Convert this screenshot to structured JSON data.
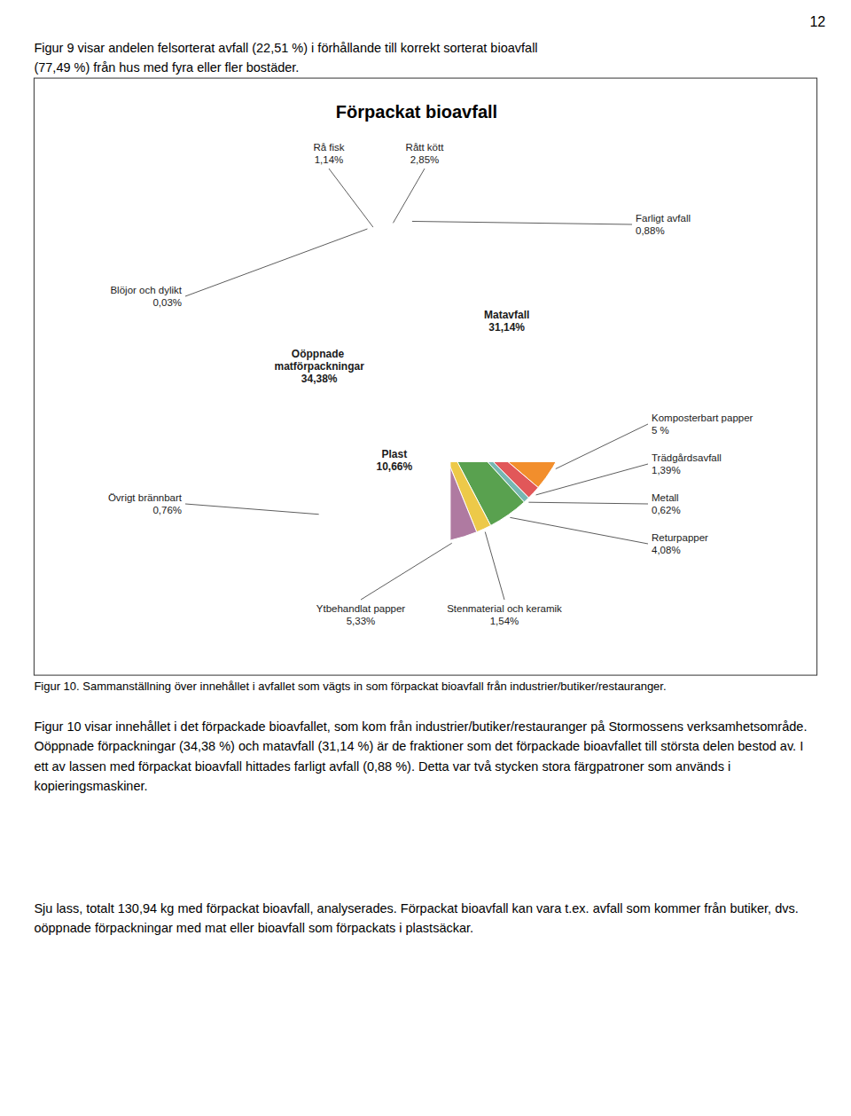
{
  "page_number": "12",
  "header_text": "Figur 9 visar andelen felsorterat avfall (22,51 %) i förhållande till korrekt sorterat bioavfall\n(77,49 %) från hus med fyra eller fler bostäder.",
  "chart_data": {
    "type": "pie",
    "title": "Förpackat bioavfall",
    "categories": [
      "Matavfall",
      "Komposterbart papper",
      "Trädgårdsavfall",
      "Metall",
      "Returpapper",
      "Stenmaterial och keramik",
      "Ytbehandlat papper",
      "Plast",
      "Övrigt brännbart",
      "Oöppnade matförpackningar",
      "Blöjor och dylikt",
      "Rå fisk",
      "Rått kött",
      "Farligt avfall"
    ],
    "values": [
      31.14,
      5.0,
      1.39,
      0.62,
      4.08,
      1.54,
      5.33,
      10.66,
      0.76,
      34.38,
      0.03,
      1.14,
      2.85,
      0.88
    ],
    "value_labels": [
      "31,14%",
      "5 %",
      "1,39%",
      "0,62%",
      "4,08%",
      "1,54%",
      "5,33%",
      "10,66%",
      "0,76%",
      "34,38%",
      "0,03%",
      "1,14%",
      "2,85%",
      "0,88%"
    ],
    "data_labels": true
  },
  "caption": "Figur 10. Sammanställning över innehållet i avfallet som vägts in som förpackat bioavfall från industrier/butiker/restauranger.",
  "body": [
    "Figur 10 visar innehållet i det förpackade bioavfallet, som kom från industrier/butiker/restauranger på Stormossens verksamhetsområde. Oöppnade förpackningar (34,38 %) och matavfall (31,14 %) är de fraktioner som det förpackade bioavfallet till största delen bestod av. I ett av lassen med förpackat bioavfall hittades farligt avfall (0,88 %). Detta var två stycken stora färgpatroner som används i kopieringsmaskiner.",
    "Sju lass, totalt 130,94 kg med förpackat bioavfall, analyserades. Förpackat bioavfall kan vara t.ex. avfall som kommer från butiker, dvs. oöppnade förpackningar med mat eller bioavfall som förpackats i plastsäckar."
  ]
}
